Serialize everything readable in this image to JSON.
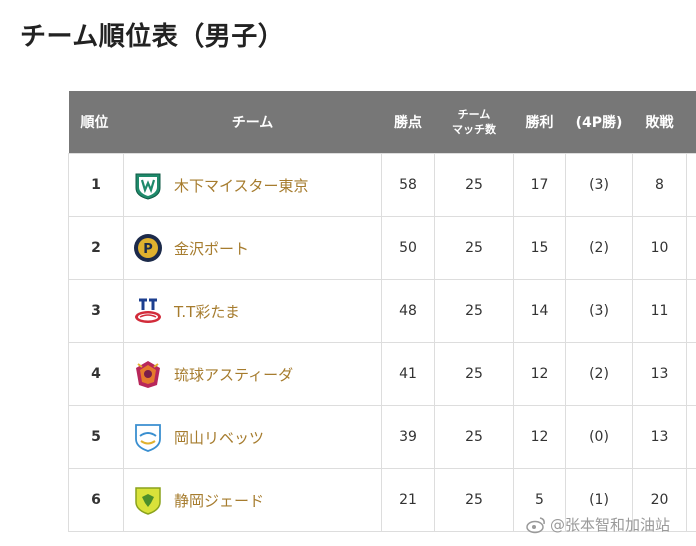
{
  "page": {
    "title": "チーム順位表（男子）",
    "watermark": "@张本智和加油站"
  },
  "table": {
    "headers": {
      "rank": "順位",
      "team": "チーム",
      "points": "勝点",
      "matches_line1": "チーム",
      "matches_line2": "マッチ数",
      "wins": "勝利",
      "wins_4p": "(4P勝)",
      "losses": "敗戦"
    },
    "rows": [
      {
        "rank": "1",
        "team": "木下マイスター東京",
        "logo": "kinoshita-logo-icon",
        "points": "58",
        "matches": "25",
        "wins": "17",
        "wins_4p": "(3)",
        "losses": "8"
      },
      {
        "rank": "2",
        "team": "金沢ポート",
        "logo": "kanazawa-logo-icon",
        "points": "50",
        "matches": "25",
        "wins": "15",
        "wins_4p": "(2)",
        "losses": "10"
      },
      {
        "rank": "3",
        "team": "T.T彩たま",
        "logo": "tt-saitama-logo-icon",
        "points": "48",
        "matches": "25",
        "wins": "14",
        "wins_4p": "(3)",
        "losses": "11"
      },
      {
        "rank": "4",
        "team": "琉球アスティーダ",
        "logo": "ryukyu-logo-icon",
        "points": "41",
        "matches": "25",
        "wins": "12",
        "wins_4p": "(2)",
        "losses": "13"
      },
      {
        "rank": "5",
        "team": "岡山リベッツ",
        "logo": "okayama-logo-icon",
        "points": "39",
        "matches": "25",
        "wins": "12",
        "wins_4p": "(0)",
        "losses": "13"
      },
      {
        "rank": "6",
        "team": "静岡ジェード",
        "logo": "shizuoka-logo-icon",
        "points": "21",
        "matches": "25",
        "wins": "5",
        "wins_4p": "(1)",
        "losses": "20"
      }
    ]
  },
  "colors": {
    "header_bg": "#777777",
    "team_link": "#a67c2e",
    "border": "#dddddd"
  }
}
